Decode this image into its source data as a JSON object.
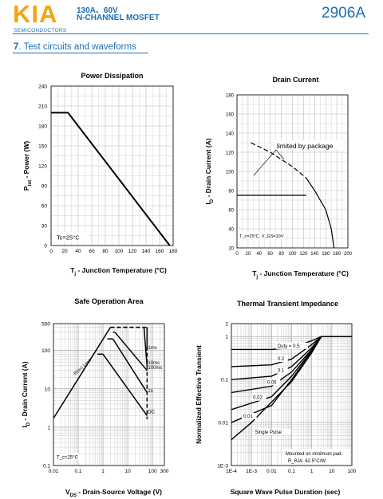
{
  "header": {
    "logo": "KIA",
    "logo_sub": "SEMICONDUCTORS",
    "spec_line1": "130A、60V",
    "spec_line2": "N-CHANNEL MOSFET",
    "part_number": "2906A",
    "brand_color": "#f5a412",
    "accent_color": "#1a6fb5"
  },
  "section": {
    "number": "7",
    "title": ". Test circuits and waveforms"
  },
  "chart_data": [
    {
      "type": "line",
      "title": "Power Dissipation",
      "xlabel": "T_j - Junction Temperature (°C)",
      "ylabel": "P_tot - Power (W)",
      "xlim": [
        0,
        180
      ],
      "ylim": [
        0,
        240
      ],
      "x_ticks": [
        "0",
        "20",
        "40",
        "60",
        "80",
        "100",
        "120",
        "140",
        "160",
        "180"
      ],
      "y_ticks": [
        "0",
        "30",
        "60",
        "90",
        "120",
        "150",
        "180",
        "210",
        "240"
      ],
      "annotation": "Tc=25°C",
      "series": [
        {
          "x": [
            0,
            25,
            175
          ],
          "y": [
            200,
            200,
            0
          ]
        }
      ]
    },
    {
      "type": "line",
      "title": "Drain Current",
      "xlabel": "T_j - Junction Temperature (°C)",
      "ylabel": "I_D - Drain Current (A)",
      "xlim": [
        0,
        200
      ],
      "ylim": [
        20,
        180
      ],
      "x_ticks": [
        "0",
        "20",
        "40",
        "60",
        "80",
        "100",
        "120",
        "140",
        "160",
        "180",
        "200"
      ],
      "y_ticks": [
        "20",
        "40",
        "60",
        "80",
        "100",
        "120",
        "140",
        "160",
        "180"
      ],
      "annotation": "limited by package",
      "note": "T_c=25°C, V_GS=10V",
      "series": [
        {
          "x": [
            0,
            125
          ],
          "y": [
            75,
            75
          ]
        },
        {
          "x": [
            25,
            60,
            100,
            125,
            140,
            160,
            170,
            175
          ],
          "y": [
            130,
            120,
            105,
            93,
            80,
            60,
            40,
            20
          ]
        }
      ]
    },
    {
      "type": "line",
      "title": "Safe Operation Area",
      "xlabel": "V_DS - Drain-Source Voltage (V)",
      "ylabel": "I_D - Drain Current (A)",
      "x_scale": "log",
      "y_scale": "log",
      "xlim": [
        0.01,
        300
      ],
      "ylim": [
        0.1,
        500
      ],
      "x_ticks": [
        "0.01",
        "0.1",
        "1",
        "10",
        "100",
        "300"
      ],
      "y_ticks": [
        "0.1",
        "1",
        "10",
        "100",
        "500"
      ],
      "boundary_label": "R(on) Limit",
      "annotation": "T_c=25°C",
      "curve_labels": [
        "1ms",
        "10ms",
        "100ms",
        "1s",
        "DC"
      ]
    },
    {
      "type": "line",
      "title": "Thermal Transient Impedance",
      "xlabel": "Square Wave Pulse Duration (sec)",
      "ylabel": "Normalized Effective Transient",
      "x_scale": "log",
      "y_scale": "log",
      "xlim": [
        0.0001,
        100
      ],
      "ylim": [
        0.001,
        2
      ],
      "x_ticks": [
        "1E-4",
        "1E-3",
        "0.01",
        "0.1",
        "1",
        "10",
        "100"
      ],
      "y_ticks": [
        "1E-3",
        "0.01",
        "0.1",
        "1",
        "2"
      ],
      "curve_labels": [
        "Duty = 0.5",
        "0.2",
        "0.1",
        "0.05",
        "0.02",
        "0.01",
        "Single Pulse"
      ],
      "note_line1": "Mounted on minimum pad.",
      "note_line2": "R_θJA: 62.5°C/W"
    }
  ]
}
